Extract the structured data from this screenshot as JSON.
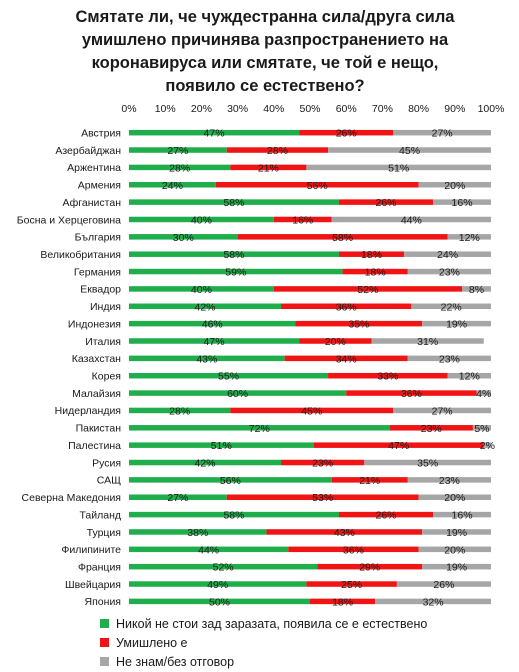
{
  "title_lines": [
    "Смятате ли, че чуждестранна сила/друга сила",
    "умишлено причинява разпространението на",
    "коронавируса или смятате, че той е нещо,",
    "появило се естествено?"
  ],
  "colors": {
    "natural": "#1fae4b",
    "deliberate": "#f01414",
    "dont_know": "#a6a6a6"
  },
  "chart_data": {
    "type": "bar",
    "orientation": "horizontal",
    "stacked": true,
    "xlim": [
      0,
      100
    ],
    "x_ticks": [
      "0%",
      "10%",
      "20%",
      "30%",
      "40%",
      "50%",
      "60%",
      "70%",
      "80%",
      "90%",
      "100%"
    ],
    "grid": false,
    "legend_position": "bottom",
    "categories": [
      "Австрия",
      "Азербайджан",
      "Аржентина",
      "Армения",
      "Афганистан",
      "Босна и Херцеговина",
      "България",
      "Великобритания",
      "Германия",
      "Еквадор",
      "Индия",
      "Индонезия",
      "Италия",
      "Казахстан",
      "Корея",
      "Малайзия",
      "Нидерландия",
      "Пакистан",
      "Палестина",
      "Русия",
      "САЩ",
      "Северна Македония",
      "Тайланд",
      "Турция",
      "Филипините",
      "Франция",
      "Швейцария",
      "Япония"
    ],
    "series": [
      {
        "name": "Никой не стои зад заразата, появила се е естествено",
        "values": [
          47,
          27,
          28,
          24,
          58,
          40,
          30,
          58,
          59,
          40,
          42,
          46,
          47,
          43,
          55,
          60,
          28,
          72,
          51,
          42,
          56,
          27,
          58,
          38,
          44,
          52,
          49,
          50
        ]
      },
      {
        "name": "Умишлено е",
        "values": [
          26,
          28,
          21,
          56,
          26,
          16,
          58,
          18,
          18,
          52,
          36,
          35,
          20,
          34,
          33,
          36,
          45,
          23,
          47,
          23,
          21,
          53,
          26,
          43,
          36,
          29,
          25,
          18
        ]
      },
      {
        "name": "Не знам/без отговор",
        "values": [
          27,
          45,
          51,
          20,
          16,
          44,
          12,
          24,
          23,
          8,
          22,
          19,
          31,
          23,
          12,
          4,
          27,
          5,
          2,
          35,
          23,
          20,
          16,
          19,
          20,
          19,
          26,
          32
        ]
      }
    ],
    "value_label_suffix": "%"
  }
}
